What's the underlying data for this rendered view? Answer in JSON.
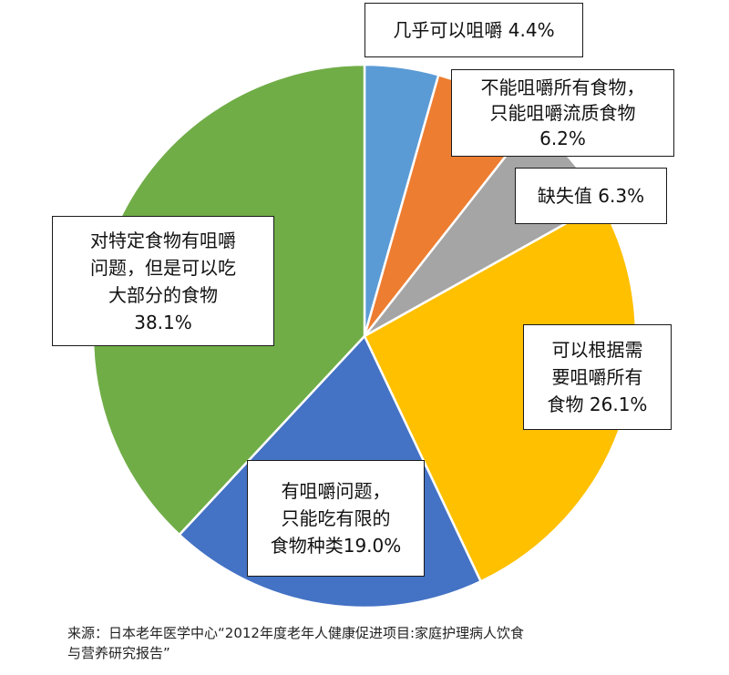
{
  "chart_data": {
    "type": "pie",
    "start_angle_deg": 0,
    "direction": "clockwise",
    "slices": [
      {
        "label": "几乎可以咀嚼",
        "value": 4.4,
        "display": "4.4%",
        "color": "#5B9BD5"
      },
      {
        "label": "不能咀嚼所有食物，只能咀嚼流质食物",
        "value": 6.2,
        "display": "6.2%",
        "color": "#ED7D31"
      },
      {
        "label": "缺失值",
        "value": 6.3,
        "display": "6.3%",
        "color": "#A5A5A5"
      },
      {
        "label": "可以根据需要咀嚼所有食物",
        "value": 26.1,
        "display": "26.1%",
        "color": "#FFC000"
      },
      {
        "label": "有咀嚼问题，只能吃有限的食物种类",
        "value": 19.0,
        "display": "19.0%",
        "color": "#4472C4"
      },
      {
        "label": "对特定食物有咀嚼问题，但是可以吃大部分的食物",
        "value": 38.1,
        "display": "38.1%",
        "color": "#70AD47"
      }
    ]
  },
  "labels": {
    "l0": [
      "几乎可以咀嚼 4.4%"
    ],
    "l1": [
      "不能咀嚼所有食物，",
      "只能咀嚼流质食物",
      "6.2%"
    ],
    "l2": [
      "缺失值 6.3%"
    ],
    "l3": [
      "可以根据需",
      "要咀嚼所有",
      "食物 26.1%"
    ],
    "l4": [
      "有咀嚼问题，",
      "只能吃有限的",
      "食物种类19.0%"
    ],
    "l5": [
      "对特定食物有咀嚼",
      "问题，但是可以吃",
      "大部分的食物",
      "38.1%"
    ]
  },
  "source": {
    "line1": "来源：日本老年医学中心“2012年度老年人健康促进项目:家庭护理病人饮食",
    "line2": "与营养研究报告”"
  }
}
